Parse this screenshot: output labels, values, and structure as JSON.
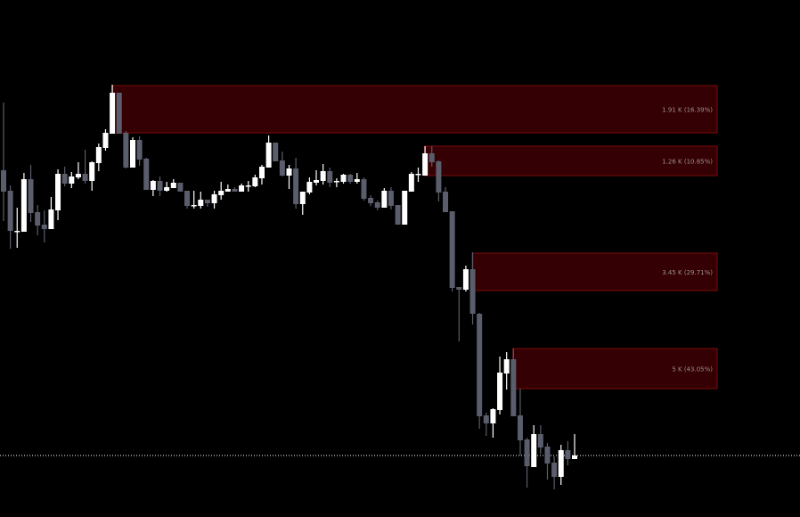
{
  "chart_data": {
    "type": "candlestick",
    "title": "",
    "xlabel": "",
    "ylabel": "",
    "ylim": [
      0,
      580
    ],
    "grid": false,
    "candle_fields": [
      "open",
      "high",
      "low",
      "close"
    ],
    "candles": [
      [
        389,
        465,
        332,
        365
      ],
      [
        366,
        372,
        301,
        321
      ],
      [
        321,
        347,
        302,
        321
      ],
      [
        320,
        386,
        320,
        379
      ],
      [
        379,
        395,
        331,
        341
      ],
      [
        342,
        350,
        316,
        327
      ],
      [
        328,
        344,
        308,
        323
      ],
      [
        323,
        359,
        323,
        345
      ],
      [
        344,
        390,
        333,
        385
      ],
      [
        385,
        393,
        371,
        374
      ],
      [
        374,
        387,
        369,
        382
      ],
      [
        381,
        398,
        379,
        385
      ],
      [
        385,
        412,
        374,
        377
      ],
      [
        377,
        399,
        366,
        398
      ],
      [
        397,
        419,
        388,
        415
      ],
      [
        414,
        435,
        411,
        431
      ],
      [
        430,
        485,
        430,
        476
      ],
      [
        476,
        476,
        430,
        430
      ],
      [
        431,
        433,
        391,
        392
      ],
      [
        392,
        426,
        392,
        423
      ],
      [
        423,
        427,
        394,
        401
      ],
      [
        402,
        403,
        367,
        367
      ],
      [
        367,
        378,
        360,
        377
      ],
      [
        377,
        382,
        360,
        366
      ],
      [
        366,
        376,
        365,
        370
      ],
      [
        369,
        379,
        369,
        375
      ],
      [
        375,
        375,
        365,
        365
      ],
      [
        366,
        366,
        346,
        349
      ],
      [
        350,
        366,
        346,
        350
      ],
      [
        349,
        365,
        346,
        356
      ],
      [
        356,
        356,
        348,
        352
      ],
      [
        352,
        366,
        346,
        362
      ],
      [
        361,
        376,
        356,
        366
      ],
      [
        365,
        373,
        365,
        368
      ],
      [
        368,
        370,
        365,
        365
      ],
      [
        365,
        374,
        365,
        372
      ],
      [
        372,
        377,
        365,
        372
      ],
      [
        371,
        384,
        370,
        381
      ],
      [
        380,
        395,
        373,
        393
      ],
      [
        392,
        428,
        392,
        420
      ],
      [
        420,
        420,
        399,
        399
      ],
      [
        400,
        410,
        382,
        383
      ],
      [
        383,
        395,
        368,
        391
      ],
      [
        391,
        403,
        346,
        351
      ],
      [
        351,
        365,
        339,
        365
      ],
      [
        364,
        381,
        362,
        376
      ],
      [
        375,
        389,
        372,
        378
      ],
      [
        377,
        396,
        373,
        388
      ],
      [
        388,
        392,
        370,
        375
      ],
      [
        377,
        380,
        370,
        377
      ],
      [
        376,
        385,
        374,
        384
      ],
      [
        384,
        385,
        374,
        376
      ],
      [
        376,
        386,
        374,
        379
      ],
      [
        379,
        381,
        355,
        357
      ],
      [
        358,
        361,
        349,
        352
      ],
      [
        353,
        355,
        344,
        347
      ],
      [
        347,
        369,
        347,
        366
      ],
      [
        366,
        370,
        345,
        349
      ],
      [
        350,
        350,
        328,
        328
      ],
      [
        328,
        366,
        328,
        366
      ],
      [
        365,
        387,
        365,
        385
      ],
      [
        385,
        392,
        376,
        385
      ],
      [
        383,
        416,
        383,
        408
      ],
      [
        408,
        416,
        393,
        398
      ],
      [
        399,
        400,
        354,
        364
      ],
      [
        365,
        370,
        342,
        342
      ],
      [
        343,
        343,
        253,
        257
      ],
      [
        258,
        258,
        197,
        255
      ],
      [
        255,
        282,
        253,
        278
      ],
      [
        278,
        297,
        216,
        228
      ],
      [
        228,
        229,
        99,
        113
      ],
      [
        114,
        117,
        91,
        105
      ],
      [
        105,
        122,
        89,
        121
      ],
      [
        120,
        180,
        115,
        162
      ],
      [
        161,
        185,
        143,
        177
      ],
      [
        177,
        189,
        113,
        113
      ],
      [
        114,
        144,
        69,
        86
      ],
      [
        87,
        89,
        33,
        57
      ],
      [
        56,
        103,
        56,
        93
      ],
      [
        93,
        103,
        71,
        78
      ],
      [
        79,
        83,
        42,
        60
      ],
      [
        61,
        68,
        31,
        45
      ],
      [
        45,
        81,
        36,
        75
      ],
      [
        75,
        85,
        58,
        65
      ],
      [
        65,
        93,
        65,
        69
      ]
    ],
    "zones": [
      {
        "start_candle": 16,
        "top": 484,
        "bottom": 431,
        "label": "1.91 K (16.39%)"
      },
      {
        "start_candle": 62,
        "top": 416,
        "bottom": 383,
        "label": "1.26 K (10.85%)"
      },
      {
        "start_candle": 69,
        "top": 296,
        "bottom": 254,
        "label": "3.45 K (29.71%)"
      },
      {
        "start_candle": 75,
        "top": 189,
        "bottom": 144,
        "label": "5 K (43.05%)"
      }
    ],
    "last_price": 69,
    "colors": {
      "background": "#000000",
      "bull": "#ffffff",
      "bear": "#5a5d6b",
      "zone_fill": "#350003",
      "zone_border": "#6b0a0a",
      "zone_text": "#9a8f8f",
      "last_price_line": "#ffffff"
    }
  }
}
